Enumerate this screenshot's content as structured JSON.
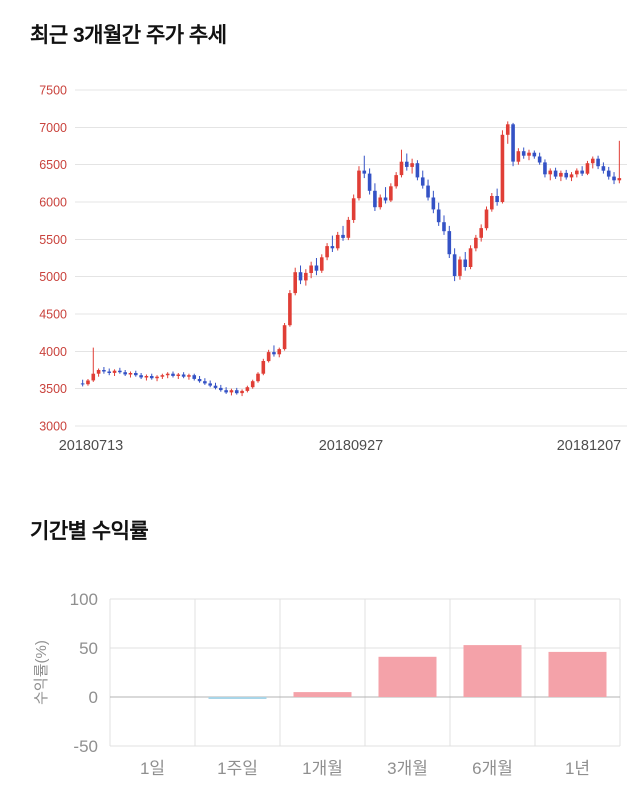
{
  "price_section": {
    "title": "최근 3개월간 주가 추세"
  },
  "returns_section": {
    "title": "기간별 수익률"
  },
  "chart_data": [
    {
      "type": "candlestick",
      "title": "최근 3개월간 주가 추세",
      "ylim": [
        3000,
        7500
      ],
      "yticks": [
        3000,
        3500,
        4000,
        4500,
        5000,
        5500,
        6000,
        6500,
        7000,
        7500
      ],
      "x_labels": [
        "20180713",
        "20180927",
        "20181207"
      ],
      "grid": true,
      "legend": false,
      "up_color": "#e03e36",
      "down_color": "#3452c5",
      "grid_color": "#e4e4e4",
      "ytick_color": "#c9423c",
      "xtick_color": "#4d4d4d",
      "ohlc": [
        [
          3570,
          3620,
          3530,
          3560
        ],
        [
          3560,
          3630,
          3540,
          3610
        ],
        [
          3610,
          4050,
          3590,
          3700
        ],
        [
          3700,
          3770,
          3660,
          3750
        ],
        [
          3750,
          3790,
          3700,
          3730
        ],
        [
          3730,
          3770,
          3680,
          3710
        ],
        [
          3710,
          3760,
          3670,
          3740
        ],
        [
          3740,
          3780,
          3700,
          3720
        ],
        [
          3720,
          3750,
          3670,
          3690
        ],
        [
          3690,
          3730,
          3650,
          3710
        ],
        [
          3710,
          3740,
          3660,
          3680
        ],
        [
          3680,
          3710,
          3630,
          3650
        ],
        [
          3650,
          3690,
          3610,
          3670
        ],
        [
          3670,
          3700,
          3620,
          3640
        ],
        [
          3640,
          3680,
          3600,
          3660
        ],
        [
          3660,
          3700,
          3630,
          3680
        ],
        [
          3680,
          3720,
          3640,
          3700
        ],
        [
          3700,
          3730,
          3650,
          3670
        ],
        [
          3670,
          3710,
          3630,
          3690
        ],
        [
          3690,
          3720,
          3640,
          3660
        ],
        [
          3660,
          3700,
          3620,
          3680
        ],
        [
          3680,
          3700,
          3610,
          3630
        ],
        [
          3630,
          3670,
          3580,
          3600
        ],
        [
          3600,
          3640,
          3550,
          3570
        ],
        [
          3570,
          3610,
          3520,
          3540
        ],
        [
          3540,
          3580,
          3490,
          3510
        ],
        [
          3510,
          3550,
          3460,
          3480
        ],
        [
          3480,
          3520,
          3430,
          3450
        ],
        [
          3450,
          3500,
          3410,
          3480
        ],
        [
          3480,
          3510,
          3420,
          3440
        ],
        [
          3440,
          3490,
          3400,
          3470
        ],
        [
          3470,
          3540,
          3450,
          3520
        ],
        [
          3520,
          3620,
          3500,
          3600
        ],
        [
          3600,
          3720,
          3580,
          3700
        ],
        [
          3700,
          3900,
          3680,
          3870
        ],
        [
          3870,
          4020,
          3850,
          3990
        ],
        [
          3990,
          4080,
          3930,
          3960
        ],
        [
          3960,
          4050,
          3920,
          4030
        ],
        [
          4030,
          4380,
          4010,
          4350
        ],
        [
          4350,
          4820,
          4330,
          4780
        ],
        [
          4780,
          5120,
          4750,
          5060
        ],
        [
          5060,
          5150,
          4900,
          4950
        ],
        [
          4950,
          5100,
          4880,
          5050
        ],
        [
          5050,
          5200,
          4980,
          5150
        ],
        [
          5150,
          5250,
          5020,
          5080
        ],
        [
          5080,
          5300,
          5050,
          5260
        ],
        [
          5260,
          5450,
          5220,
          5410
        ],
        [
          5410,
          5550,
          5330,
          5380
        ],
        [
          5380,
          5600,
          5350,
          5560
        ],
        [
          5560,
          5680,
          5480,
          5520
        ],
        [
          5520,
          5800,
          5490,
          5760
        ],
        [
          5760,
          6100,
          5720,
          6050
        ],
        [
          6050,
          6480,
          6020,
          6420
        ],
        [
          6420,
          6620,
          6320,
          6380
        ],
        [
          6380,
          6450,
          6100,
          6150
        ],
        [
          6150,
          6250,
          5880,
          5930
        ],
        [
          5930,
          6100,
          5900,
          6060
        ],
        [
          6060,
          6200,
          5980,
          6020
        ],
        [
          6020,
          6250,
          6000,
          6210
        ],
        [
          6210,
          6400,
          6180,
          6360
        ],
        [
          6360,
          6700,
          6330,
          6540
        ],
        [
          6540,
          6650,
          6420,
          6470
        ],
        [
          6470,
          6580,
          6380,
          6520
        ],
        [
          6520,
          6560,
          6290,
          6330
        ],
        [
          6330,
          6420,
          6180,
          6220
        ],
        [
          6220,
          6300,
          6020,
          6060
        ],
        [
          6060,
          6150,
          5850,
          5900
        ],
        [
          5900,
          5990,
          5680,
          5730
        ],
        [
          5730,
          5820,
          5560,
          5610
        ],
        [
          5610,
          5680,
          5250,
          5300
        ],
        [
          5300,
          5380,
          4940,
          5010
        ],
        [
          5010,
          5270,
          4960,
          5230
        ],
        [
          5230,
          5330,
          5080,
          5130
        ],
        [
          5130,
          5420,
          5100,
          5380
        ],
        [
          5380,
          5560,
          5340,
          5520
        ],
        [
          5520,
          5700,
          5470,
          5650
        ],
        [
          5650,
          5940,
          5620,
          5900
        ],
        [
          5900,
          6120,
          5870,
          6080
        ],
        [
          6080,
          6180,
          5950,
          6000
        ],
        [
          6000,
          6960,
          5980,
          6900
        ],
        [
          6900,
          7080,
          6780,
          7040
        ],
        [
          7040,
          7060,
          6480,
          6540
        ],
        [
          6540,
          6720,
          6500,
          6680
        ],
        [
          6680,
          6730,
          6580,
          6620
        ],
        [
          6620,
          6700,
          6560,
          6660
        ],
        [
          6660,
          6690,
          6580,
          6610
        ],
        [
          6610,
          6660,
          6500,
          6530
        ],
        [
          6530,
          6570,
          6330,
          6370
        ],
        [
          6370,
          6450,
          6290,
          6420
        ],
        [
          6420,
          6460,
          6310,
          6340
        ],
        [
          6340,
          6420,
          6280,
          6390
        ],
        [
          6390,
          6430,
          6300,
          6330
        ],
        [
          6330,
          6400,
          6280,
          6370
        ],
        [
          6370,
          6450,
          6330,
          6420
        ],
        [
          6420,
          6480,
          6350,
          6380
        ],
        [
          6380,
          6550,
          6360,
          6520
        ],
        [
          6520,
          6610,
          6450,
          6580
        ],
        [
          6580,
          6620,
          6440,
          6480
        ],
        [
          6480,
          6530,
          6380,
          6420
        ],
        [
          6420,
          6470,
          6300,
          6340
        ],
        [
          6340,
          6400,
          6240,
          6290
        ],
        [
          6290,
          6820,
          6250,
          6320
        ]
      ]
    },
    {
      "type": "bar",
      "title": "기간별 수익률",
      "categories": [
        "1일",
        "1주일",
        "1개월",
        "3개월",
        "6개월",
        "1년"
      ],
      "values": [
        0,
        -2,
        5,
        41,
        53,
        46
      ],
      "ylabel": "수익률(%)",
      "ylim": [
        -50,
        100
      ],
      "yticks": [
        100,
        50,
        0,
        -50
      ],
      "grid": true,
      "legend": false,
      "positive_color": "#f4a2a9",
      "negative_color": "#a8d5e8",
      "grid_color": "#e0e0e0",
      "zero_line_color": "#b3b3b3",
      "tick_color": "#8f8f8f"
    }
  ]
}
